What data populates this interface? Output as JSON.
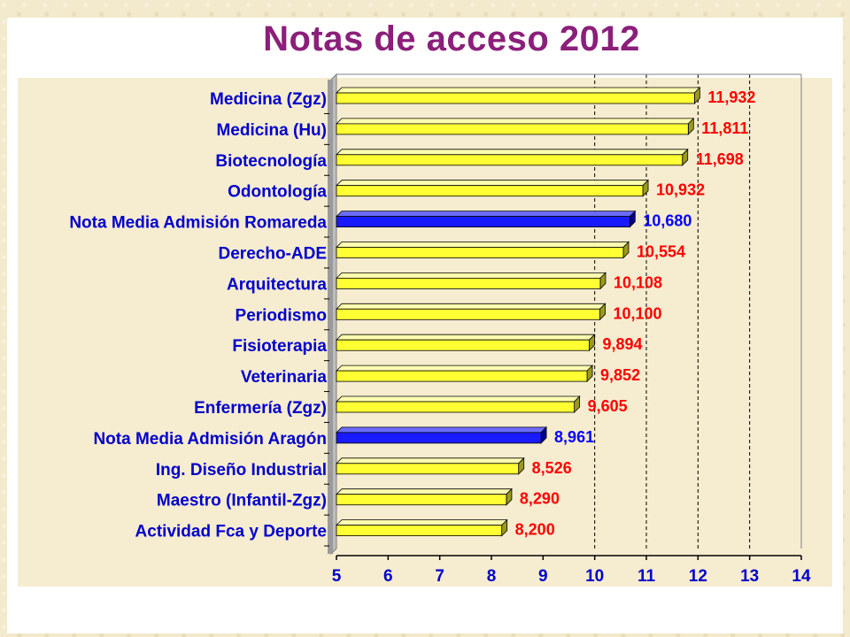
{
  "slide": {
    "title": "Notas de acceso 2012"
  },
  "colors": {
    "plot_bg": "#f6ecd0",
    "bar_default": "#ffff33",
    "bar_highlight": "#1a1aff",
    "label_default": "#ff0000",
    "label_highlight": "#0000ff",
    "title": "#8b1f7a"
  },
  "chart_data": {
    "type": "bar",
    "orientation": "horizontal",
    "title": "Notas de acceso 2012",
    "xlabel": "",
    "ylabel": "",
    "xlim": [
      5,
      14
    ],
    "xticks": [
      "5",
      "6",
      "7",
      "8",
      "9",
      "10",
      "11",
      "12",
      "13",
      "14"
    ],
    "grid": "vertical dashed at 10, 11, 12, 13",
    "categories": [
      "Medicina (Zgz)",
      "Medicina (Hu)",
      "Biotecnología",
      "Odontología",
      "Nota Media Admisión Romareda",
      "Derecho-ADE",
      "Arquitectura",
      "Periodismo",
      "Fisioterapia",
      "Veterinaria",
      "Enfermería (Zgz)",
      "Nota Media Admisión Aragón",
      "Ing. Diseño Industrial",
      "Maestro (Infantil-Zgz)",
      "Actividad Fca y Deporte"
    ],
    "values": [
      11.932,
      11.811,
      11.698,
      10.932,
      10.68,
      10.554,
      10.108,
      10.1,
      9.894,
      9.852,
      9.605,
      8.961,
      8.526,
      8.29,
      8.2
    ],
    "value_labels": [
      "11,932",
      "11,811",
      "11,698",
      "10,932",
      "10,680",
      "10,554",
      "10,108",
      "10,100",
      "9,894",
      "9,852",
      "9,605",
      "8,961",
      "8,526",
      "8,290",
      "8,200"
    ],
    "highlighted": [
      false,
      false,
      false,
      false,
      true,
      false,
      false,
      false,
      false,
      false,
      false,
      true,
      false,
      false,
      false
    ]
  }
}
